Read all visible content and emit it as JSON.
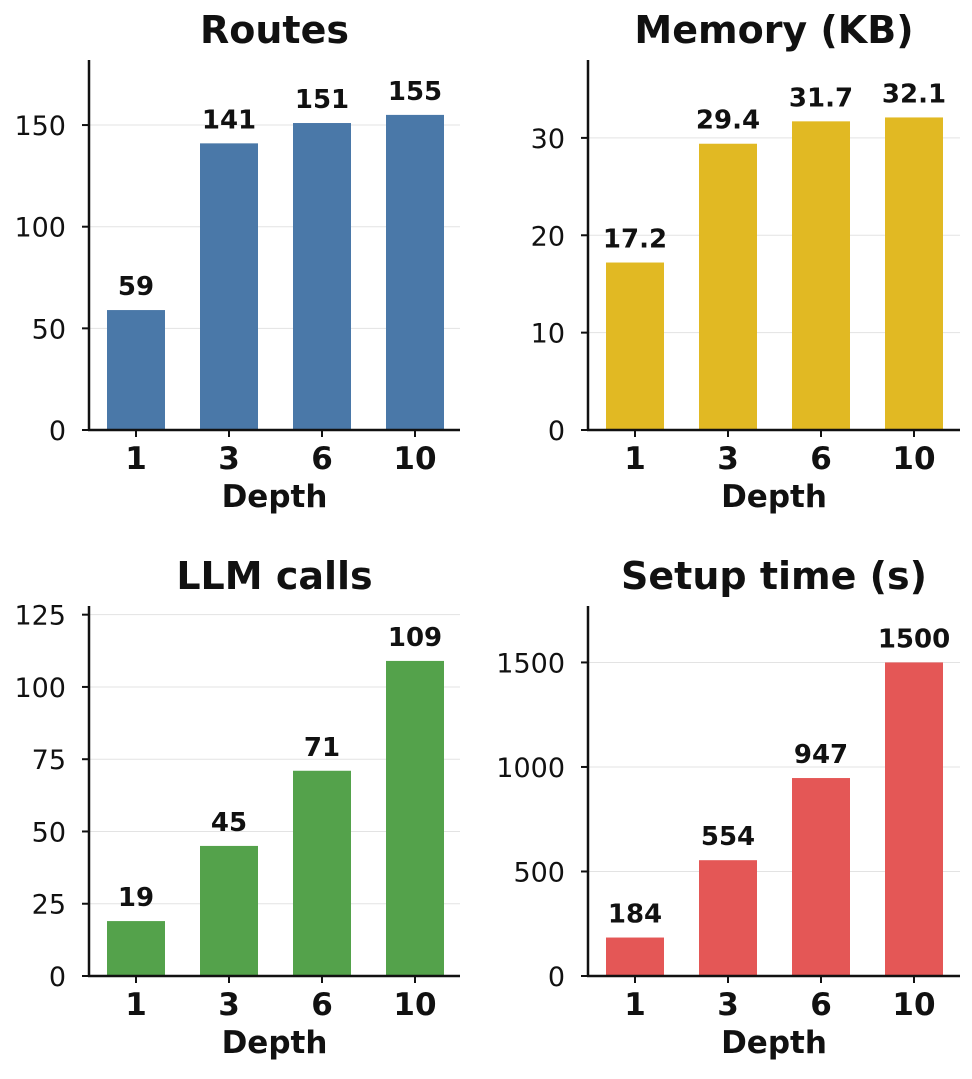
{
  "chart_data": [
    {
      "type": "bar",
      "title": "Routes",
      "xlabel": "Depth",
      "ylabel": "",
      "categories": [
        "1",
        "3",
        "6",
        "10"
      ],
      "values": [
        59,
        141,
        151,
        155
      ],
      "value_labels": [
        "59",
        "141",
        "151",
        "155"
      ],
      "ylim": [
        0,
        182
      ],
      "yticks": [
        0,
        50,
        100,
        150
      ],
      "color": "#4a78a8",
      "grid": "y"
    },
    {
      "type": "bar",
      "title": "Memory (KB)",
      "xlabel": "Depth",
      "ylabel": "",
      "categories": [
        "1",
        "3",
        "6",
        "10"
      ],
      "values": [
        17.2,
        29.4,
        31.7,
        32.1
      ],
      "value_labels": [
        "17.2",
        "29.4",
        "31.7",
        "32.1"
      ],
      "ylim": [
        0,
        38
      ],
      "yticks": [
        0,
        10,
        20,
        30
      ],
      "color": "#e1b923",
      "grid": "y"
    },
    {
      "type": "bar",
      "title": "LLM calls",
      "xlabel": "Depth",
      "ylabel": "",
      "categories": [
        "1",
        "3",
        "6",
        "10"
      ],
      "values": [
        19,
        45,
        71,
        109
      ],
      "value_labels": [
        "19",
        "45",
        "71",
        "109"
      ],
      "ylim": [
        0,
        128
      ],
      "yticks": [
        0,
        25,
        50,
        75,
        100,
        125
      ],
      "color": "#54a24b",
      "grid": "y"
    },
    {
      "type": "bar",
      "title": "Setup time (s)",
      "xlabel": "Depth",
      "ylabel": "",
      "categories": [
        "1",
        "3",
        "6",
        "10"
      ],
      "values": [
        184,
        554,
        947,
        1500
      ],
      "value_labels": [
        "184",
        "554",
        "947",
        "1500"
      ],
      "ylim": [
        0,
        1770
      ],
      "yticks": [
        0,
        500,
        1000,
        1500
      ],
      "color": "#e45756",
      "grid": "y"
    }
  ]
}
